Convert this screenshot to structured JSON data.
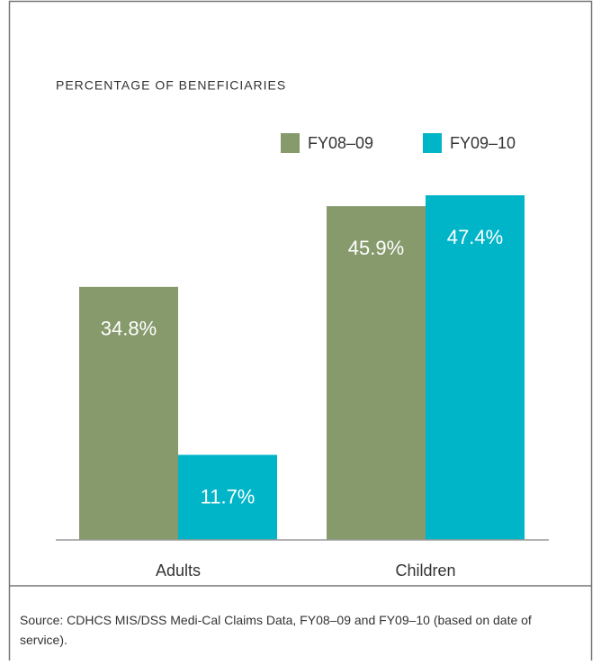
{
  "chart_data": {
    "type": "bar",
    "ylabel": "PERCENTAGE OF BENEFICIARIES",
    "categories": [
      "Adults",
      "Children"
    ],
    "series": [
      {
        "name": "FY08–09",
        "color": "#869a6c",
        "values": [
          34.8,
          45.9
        ],
        "value_labels": [
          "34.8%",
          "45.9%"
        ]
      },
      {
        "name": "FY09–10",
        "color": "#00b5c8",
        "values": [
          11.7,
          47.4
        ],
        "value_labels": [
          "11.7%",
          "47.4%"
        ]
      }
    ],
    "legend": "top-right",
    "source": "Source: CDHCS MIS/DSS Medi-Cal Claims Data, FY08–09 and FY09–10 (based on date of service)."
  }
}
